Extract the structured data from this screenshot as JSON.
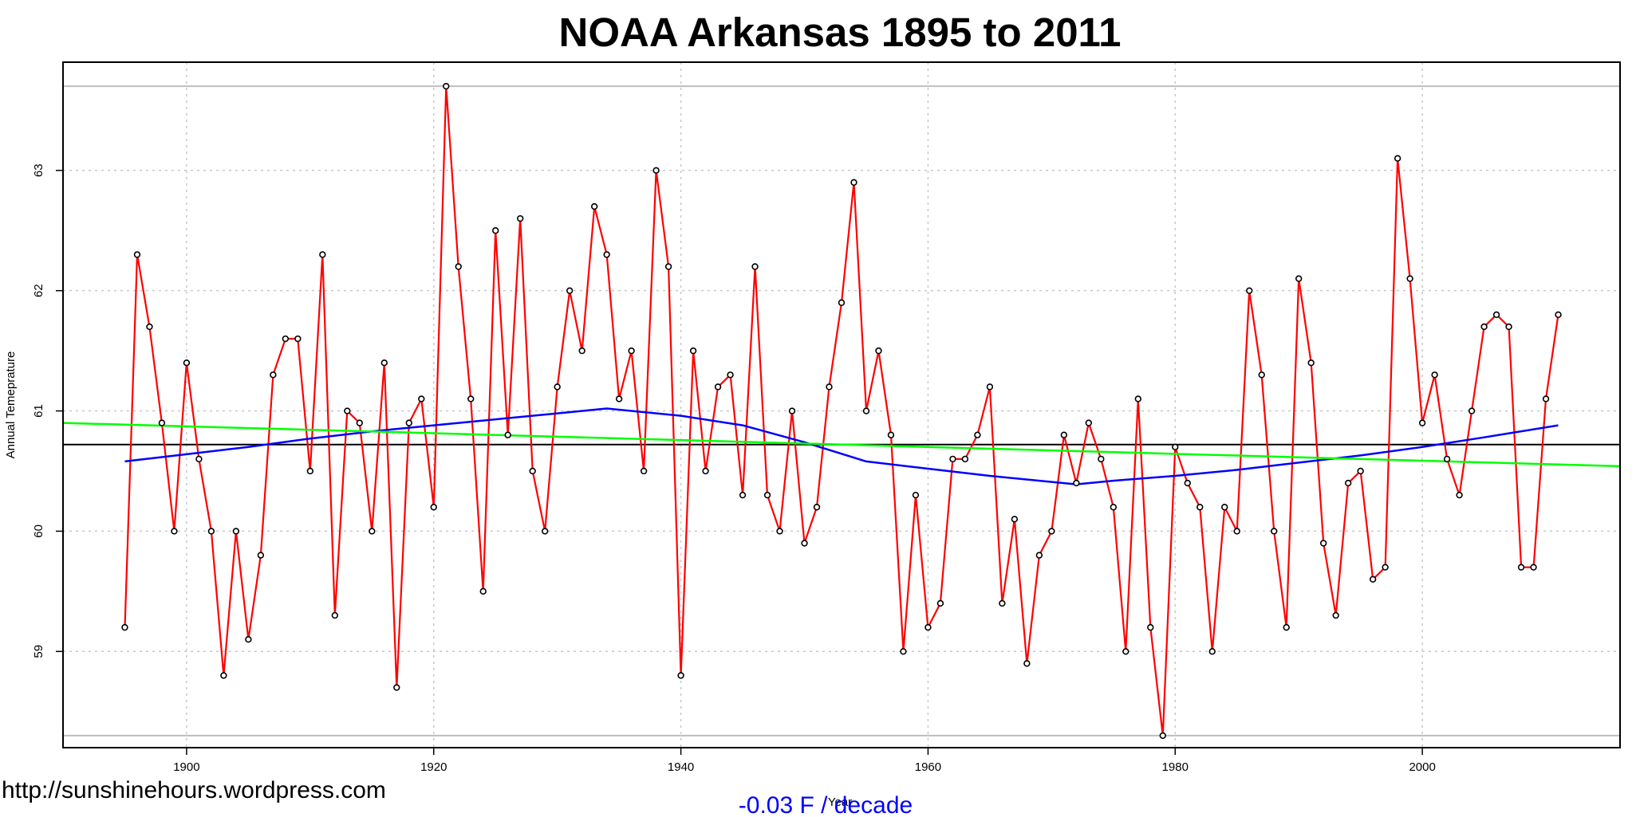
{
  "chart_data": {
    "type": "line",
    "title": "NOAA  Arkansas 1895 to 2011",
    "xlabel": "Year",
    "ylabel": "Annual Temeprature",
    "xlim": [
      1890,
      2016
    ],
    "ylim": [
      58.2,
      63.9
    ],
    "grid": true,
    "x_ticks": [
      1900,
      1920,
      1940,
      1960,
      1980,
      2000
    ],
    "y_ticks": [
      59,
      60,
      61,
      62,
      63
    ],
    "series": [
      {
        "color": "#ff0000",
        "marker": "circle",
        "x": [
          1895,
          1896,
          1897,
          1898,
          1899,
          1900,
          1901,
          1902,
          1903,
          1904,
          1905,
          1906,
          1907,
          1908,
          1909,
          1910,
          1911,
          1912,
          1913,
          1914,
          1915,
          1916,
          1917,
          1918,
          1919,
          1920,
          1921,
          1922,
          1923,
          1924,
          1925,
          1926,
          1927,
          1928,
          1929,
          1930,
          1931,
          1932,
          1933,
          1934,
          1935,
          1936,
          1937,
          1938,
          1939,
          1940,
          1941,
          1942,
          1943,
          1944,
          1945,
          1946,
          1947,
          1948,
          1949,
          1950,
          1951,
          1952,
          1953,
          1954,
          1955,
          1956,
          1957,
          1958,
          1959,
          1960,
          1961,
          1962,
          1963,
          1964,
          1965,
          1966,
          1967,
          1968,
          1969,
          1970,
          1971,
          1972,
          1973,
          1974,
          1975,
          1976,
          1977,
          1978,
          1979,
          1980,
          1981,
          1982,
          1983,
          1984,
          1985,
          1986,
          1987,
          1988,
          1989,
          1990,
          1991,
          1992,
          1993,
          1994,
          1995,
          1996,
          1997,
          1998,
          1999,
          2000,
          2001,
          2002,
          2003,
          2004,
          2005,
          2006,
          2007,
          2008,
          2009,
          2010,
          2011
        ],
        "y": [
          59.2,
          62.3,
          61.7,
          60.9,
          60.0,
          61.4,
          60.6,
          60.0,
          58.8,
          60.0,
          59.1,
          59.8,
          61.3,
          61.6,
          61.6,
          60.5,
          62.3,
          59.3,
          61.0,
          60.9,
          60.0,
          61.4,
          58.7,
          60.9,
          61.1,
          60.2,
          63.7,
          62.2,
          61.1,
          59.5,
          62.5,
          60.8,
          62.6,
          60.5,
          60.0,
          61.2,
          62.0,
          61.5,
          62.7,
          62.3,
          61.1,
          61.5,
          60.5,
          63.0,
          62.2,
          58.8,
          61.5,
          60.5,
          61.2,
          61.3,
          60.3,
          62.2,
          60.3,
          60.0,
          61.0,
          59.9,
          60.2,
          61.2,
          61.9,
          62.9,
          61.0,
          61.5,
          60.8,
          59.0,
          60.3,
          59.2,
          59.4,
          60.6,
          60.6,
          60.8,
          61.2,
          59.4,
          60.1,
          58.9,
          59.8,
          60.0,
          60.8,
          60.4,
          60.9,
          60.6,
          60.2,
          59.0,
          61.1,
          59.2,
          58.3,
          60.7,
          60.4,
          60.2,
          59.0,
          60.2,
          60.0,
          62.0,
          61.3,
          60.0,
          59.2,
          62.1,
          61.4,
          59.9,
          59.3,
          60.4,
          60.5,
          59.6,
          59.7,
          63.1,
          62.1,
          60.9,
          61.3,
          60.6,
          60.3,
          61.0,
          61.7,
          61.8,
          61.7,
          59.7,
          59.7,
          61.1,
          61.8
        ]
      },
      {
        "color": "#0000ff",
        "x": [
          1895,
          1900,
          1905,
          1910,
          1915,
          1920,
          1925,
          1930,
          1934,
          1940,
          1945,
          1950,
          1955,
          1960,
          1965,
          1970,
          1972,
          1975,
          1980,
          1985,
          1990,
          1995,
          2000,
          2005,
          2011
        ],
        "y": [
          60.58,
          60.64,
          60.7,
          60.77,
          60.83,
          60.88,
          60.93,
          60.98,
          61.02,
          60.96,
          60.88,
          60.74,
          60.58,
          60.52,
          60.46,
          60.41,
          60.39,
          60.42,
          60.46,
          60.51,
          60.57,
          60.63,
          60.7,
          60.78,
          60.88
        ]
      },
      {
        "color": "#00ff00",
        "x": [
          1890,
          2016
        ],
        "y": [
          60.9,
          60.54
        ]
      }
    ],
    "hlines": [
      {
        "y": 60.72,
        "color": "#000000"
      },
      {
        "y": 63.7,
        "color": "#bebebe"
      },
      {
        "y": 58.3,
        "color": "#bebebe"
      }
    ],
    "annotation": "-0.03 F / decade"
  },
  "watermark": "http://sunshinehours.wordpress.com"
}
